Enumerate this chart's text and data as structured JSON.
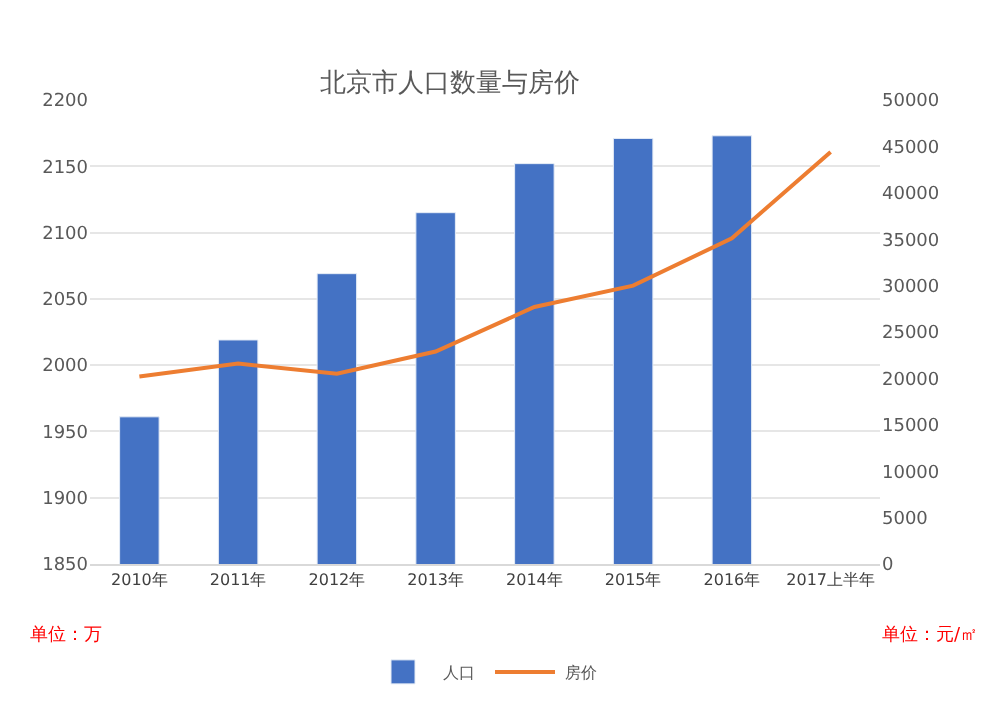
{
  "chart_data": {
    "type": "bar",
    "title": "北京市人口数量与房价",
    "categories": [
      "2010年",
      "2011年",
      "2012年",
      "2013年",
      "2014年",
      "2015年",
      "2016年",
      "2017上半年"
    ],
    "series": [
      {
        "name": "人口",
        "color": "#4472c4",
        "values": [
          1961,
          2019,
          2069,
          2115,
          2152,
          2171,
          2173,
          null
        ]
      },
      {
        "name": "房价",
        "color": "#ed7d31",
        "type": "line",
        "axis": "y2",
        "values": [
          20200,
          21600,
          20500,
          22900,
          27700,
          30000,
          35100,
          44400
        ]
      }
    ],
    "ylim": [
      1850,
      2200
    ],
    "yticks": [
      1850,
      1900,
      1950,
      2000,
      2050,
      2100,
      2150,
      2200
    ],
    "y2lim": [
      0,
      50000
    ],
    "y2ticks": [
      0,
      5000,
      10000,
      15000,
      20000,
      25000,
      30000,
      35000,
      40000,
      45000,
      50000
    ],
    "grid": "y",
    "legend": "bottom",
    "annotations": [
      "单位：万",
      "单位：元/㎡"
    ]
  }
}
